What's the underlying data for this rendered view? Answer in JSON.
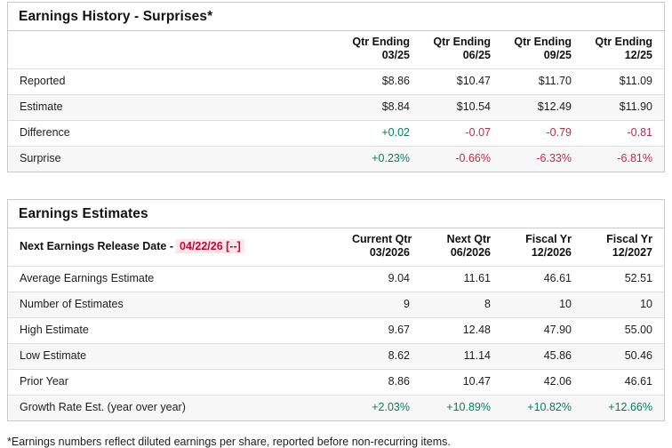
{
  "colors": {
    "positive": "#008060",
    "negative": "#c02b42",
    "date_red": "#cc0033",
    "date_bg": "#fbe7e8",
    "stripe": "#f7f7f7"
  },
  "earnings_history": {
    "title": "Earnings History - Surprises*",
    "columns": [
      {
        "line1": "Qtr Ending",
        "line2": "03/25"
      },
      {
        "line1": "Qtr Ending",
        "line2": "06/25"
      },
      {
        "line1": "Qtr Ending",
        "line2": "09/25"
      },
      {
        "line1": "Qtr Ending",
        "line2": "12/25"
      }
    ],
    "rows": [
      {
        "label": "Reported",
        "values": [
          "$8.86",
          "$10.47",
          "$11.70",
          "$11.09"
        ],
        "tones": [
          "",
          "",
          "",
          ""
        ]
      },
      {
        "label": "Estimate",
        "values": [
          "$8.84",
          "$10.54",
          "$12.49",
          "$11.90"
        ],
        "tones": [
          "",
          "",
          "",
          ""
        ]
      },
      {
        "label": "Difference",
        "values": [
          "+0.02",
          "-0.07",
          "-0.79",
          "-0.81"
        ],
        "tones": [
          "positive",
          "negative",
          "negative",
          "negative"
        ]
      },
      {
        "label": "Surprise",
        "values": [
          "+0.23%",
          "-0.66%",
          "-6.33%",
          "-6.81%"
        ],
        "tones": [
          "positive",
          "negative",
          "negative",
          "negative"
        ]
      }
    ]
  },
  "earnings_estimates": {
    "title": "Earnings Estimates",
    "release_label": "Next Earnings Release Date -",
    "release_date": "04/22/26 [--]",
    "columns": [
      {
        "line1": "Current Qtr",
        "line2": "03/2026"
      },
      {
        "line1": "Next Qtr",
        "line2": "06/2026"
      },
      {
        "line1": "Fiscal Yr",
        "line2": "12/2026"
      },
      {
        "line1": "Fiscal Yr",
        "line2": "12/2027"
      }
    ],
    "rows": [
      {
        "label": "Average Earnings Estimate",
        "values": [
          "9.04",
          "11.61",
          "46.61",
          "52.51"
        ],
        "tones": [
          "",
          "",
          "",
          ""
        ]
      },
      {
        "label": "Number of Estimates",
        "values": [
          "9",
          "8",
          "10",
          "10"
        ],
        "tones": [
          "",
          "",
          "",
          ""
        ]
      },
      {
        "label": "High Estimate",
        "values": [
          "9.67",
          "12.48",
          "47.90",
          "55.00"
        ],
        "tones": [
          "",
          "",
          "",
          ""
        ]
      },
      {
        "label": "Low Estimate",
        "values": [
          "8.62",
          "11.14",
          "45.86",
          "50.46"
        ],
        "tones": [
          "",
          "",
          "",
          ""
        ]
      },
      {
        "label": "Prior Year",
        "values": [
          "8.86",
          "10.47",
          "42.06",
          "46.61"
        ],
        "tones": [
          "",
          "",
          "",
          ""
        ]
      },
      {
        "label": "Growth Rate Est. (year over year)",
        "values": [
          "+2.03%",
          "+10.89%",
          "+10.82%",
          "+12.66%"
        ],
        "tones": [
          "positive",
          "positive",
          "positive",
          "positive"
        ]
      }
    ]
  },
  "footnote": "*Earnings numbers reflect diluted earnings per share, reported before non-recurring items."
}
